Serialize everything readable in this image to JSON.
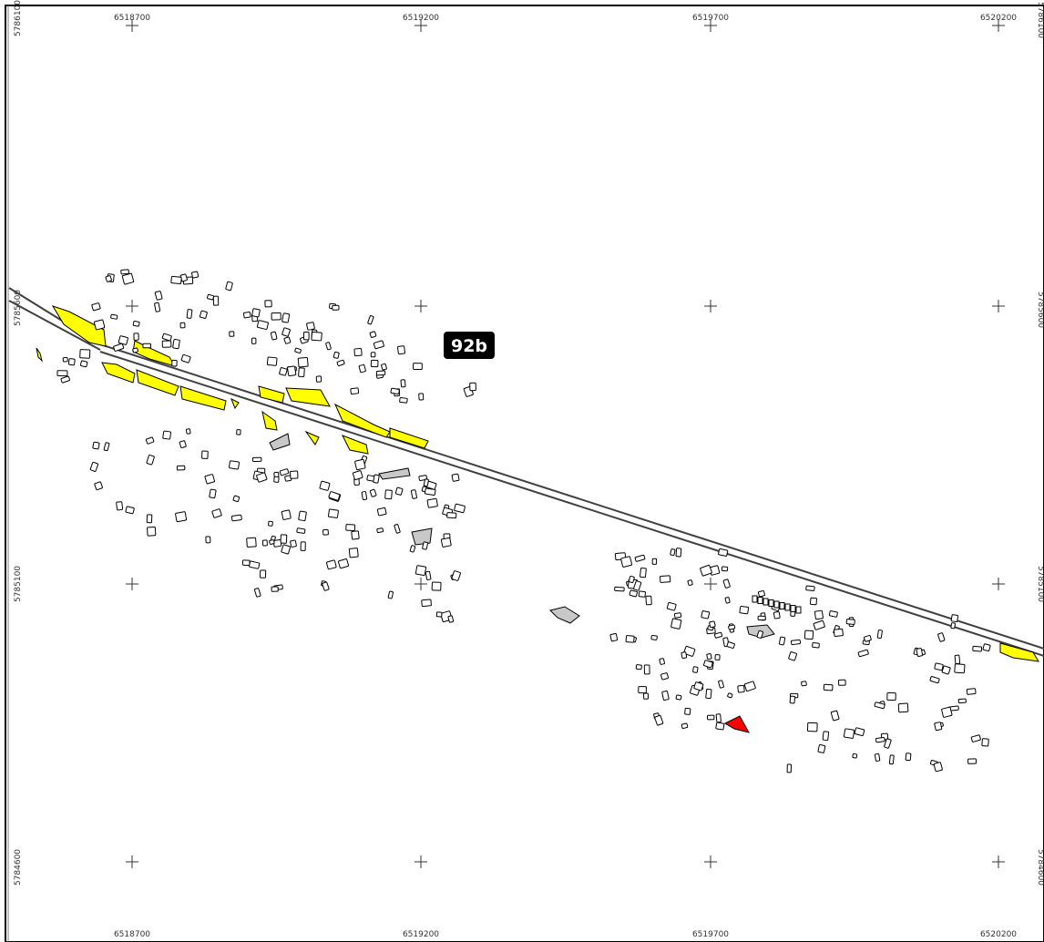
{
  "map": {
    "grid": {
      "x_labels": [
        "6518700",
        "6519200",
        "6519700",
        "6520200"
      ],
      "y_labels": [
        "5786100",
        "5785600",
        "5785100",
        "5784600"
      ]
    },
    "label": "92b",
    "colors": {
      "background": "#ffffff",
      "railway": "#404040",
      "building_outline": "#000000",
      "building_fill": "#ffffff",
      "highlight_yellow": "#ffff00",
      "highlight_red": "#ff0000",
      "highlight_gray": "#c8c8c8",
      "label_bg": "#000000",
      "grid_cross": "#333333"
    }
  }
}
